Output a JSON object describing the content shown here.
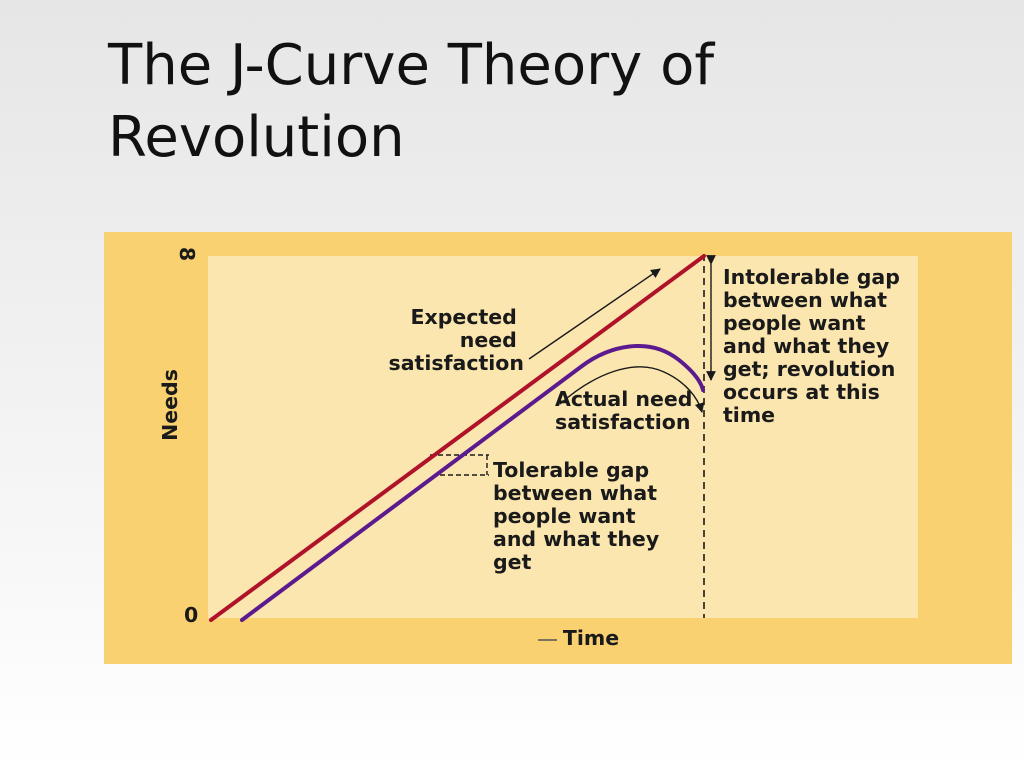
{
  "slide": {
    "title_line1": "The J-Curve Theory of",
    "title_line2": "Revolution"
  },
  "diagram": {
    "y_axis": {
      "label": "Needs",
      "max_label": "8",
      "min_label": "0"
    },
    "x_axis": {
      "label": "Time"
    },
    "expected_label": [
      "Expected",
      "need",
      "satisfaction"
    ],
    "actual_label": [
      "Actual need",
      "satisfaction"
    ],
    "tolerable_gap_label": [
      "Tolerable gap",
      "between what",
      "people want",
      "and what they",
      "get"
    ],
    "intolerable_gap_label": [
      "Intolerable gap",
      "between what",
      "people want",
      "and what they",
      "get; revolution",
      "occurs at this",
      "time"
    ],
    "colors": {
      "background_outer": "#f9d170",
      "plot_area": "#fbe6b0",
      "expected_line": "#b0122a",
      "actual_line": "#5b1a8e"
    }
  }
}
